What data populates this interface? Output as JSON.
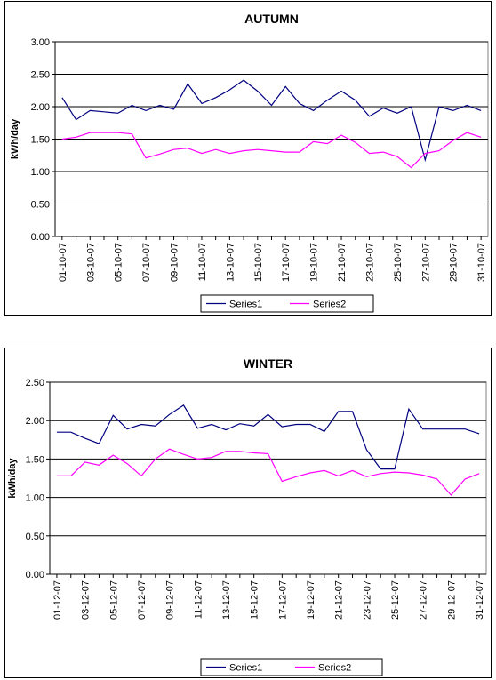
{
  "chart_data": [
    {
      "type": "line",
      "title": "AUTUMN",
      "xlabel": "",
      "ylabel": "kWh/day",
      "ylim": [
        0,
        3
      ],
      "yticks": [
        "0.00",
        "0.50",
        "1.00",
        "1.50",
        "2.00",
        "2.50",
        "3.00"
      ],
      "grid": true,
      "legend": "bottom",
      "categories": [
        "01-10-07",
        "02-10-07",
        "03-10-07",
        "04-10-07",
        "05-10-07",
        "06-10-07",
        "07-10-07",
        "08-10-07",
        "09-10-07",
        "10-10-07",
        "11-10-07",
        "12-10-07",
        "13-10-07",
        "14-10-07",
        "15-10-07",
        "16-10-07",
        "17-10-07",
        "18-10-07",
        "19-10-07",
        "20-10-07",
        "21-10-07",
        "22-10-07",
        "23-10-07",
        "24-10-07",
        "25-10-07",
        "26-10-07",
        "27-10-07",
        "28-10-07",
        "29-10-07",
        "30-10-07",
        "31-10-07"
      ],
      "tick_labels": [
        "01-10-07",
        "03-10-07",
        "05-10-07",
        "07-10-07",
        "09-10-07",
        "11-10-07",
        "13-10-07",
        "15-10-07",
        "17-10-07",
        "19-10-07",
        "21-10-07",
        "23-10-07",
        "25-10-07",
        "27-10-07",
        "29-10-07",
        "31-10-07"
      ],
      "series": [
        {
          "name": "Series1",
          "color": "#000080",
          "values": [
            2.14,
            1.8,
            1.94,
            1.92,
            1.9,
            2.02,
            1.94,
            2.02,
            1.96,
            2.35,
            2.05,
            2.14,
            2.26,
            2.41,
            2.24,
            2.02,
            2.31,
            2.05,
            1.94,
            2.1,
            2.24,
            2.1,
            1.85,
            1.98,
            1.9,
            2.0,
            1.18,
            2.0,
            1.94,
            2.02,
            1.94
          ]
        },
        {
          "name": "Series2",
          "color": "#ff00ff",
          "values": [
            1.5,
            1.53,
            1.6,
            1.6,
            1.6,
            1.58,
            1.21,
            1.27,
            1.34,
            1.36,
            1.28,
            1.34,
            1.28,
            1.32,
            1.34,
            1.32,
            1.3,
            1.3,
            1.46,
            1.43,
            1.56,
            1.45,
            1.28,
            1.3,
            1.23,
            1.06,
            1.28,
            1.32,
            1.48,
            1.6,
            1.53
          ]
        }
      ]
    },
    {
      "type": "line",
      "title": "WINTER",
      "xlabel": "",
      "ylabel": "kWh/day",
      "ylim": [
        0,
        2.5
      ],
      "yticks": [
        "0.00",
        "0.50",
        "1.00",
        "1.50",
        "2.00",
        "2.50"
      ],
      "grid": true,
      "legend": "bottom",
      "categories": [
        "01-12-07",
        "02-12-07",
        "03-12-07",
        "04-12-07",
        "05-12-07",
        "06-12-07",
        "07-12-07",
        "08-12-07",
        "09-12-07",
        "10-12-07",
        "11-12-07",
        "12-12-07",
        "13-12-07",
        "14-12-07",
        "15-12-07",
        "16-12-07",
        "17-12-07",
        "18-12-07",
        "19-12-07",
        "20-12-07",
        "21-12-07",
        "22-12-07",
        "23-12-07",
        "24-12-07",
        "25-12-07",
        "26-12-07",
        "27-12-07",
        "28-12-07",
        "29-12-07",
        "30-12-07",
        "31-12-07"
      ],
      "tick_labels": [
        "01-12-07",
        "03-12-07",
        "05-12-07",
        "07-12-07",
        "09-12-07",
        "11-12-07",
        "13-12-07",
        "15-12-07",
        "17-12-07",
        "19-12-07",
        "21-12-07",
        "23-12-07",
        "25-12-07",
        "27-12-07",
        "29-12-07",
        "31-12-07"
      ],
      "series": [
        {
          "name": "Series1",
          "color": "#000080",
          "values": [
            1.85,
            1.85,
            1.77,
            1.7,
            2.07,
            1.89,
            1.95,
            1.93,
            2.08,
            2.2,
            1.9,
            1.95,
            1.88,
            1.96,
            1.93,
            2.08,
            1.92,
            1.95,
            1.95,
            1.86,
            2.12,
            2.12,
            1.62,
            1.37,
            1.37,
            2.15,
            1.89,
            1.89,
            1.89,
            1.89,
            1.83
          ]
        },
        {
          "name": "Series2",
          "color": "#ff00ff",
          "values": [
            1.28,
            1.28,
            1.46,
            1.42,
            1.55,
            1.44,
            1.28,
            1.5,
            1.63,
            1.56,
            1.5,
            1.52,
            1.6,
            1.6,
            1.58,
            1.57,
            1.21,
            1.27,
            1.32,
            1.35,
            1.28,
            1.35,
            1.27,
            1.31,
            1.33,
            1.32,
            1.29,
            1.24,
            1.03,
            1.24,
            1.31
          ]
        }
      ]
    }
  ]
}
